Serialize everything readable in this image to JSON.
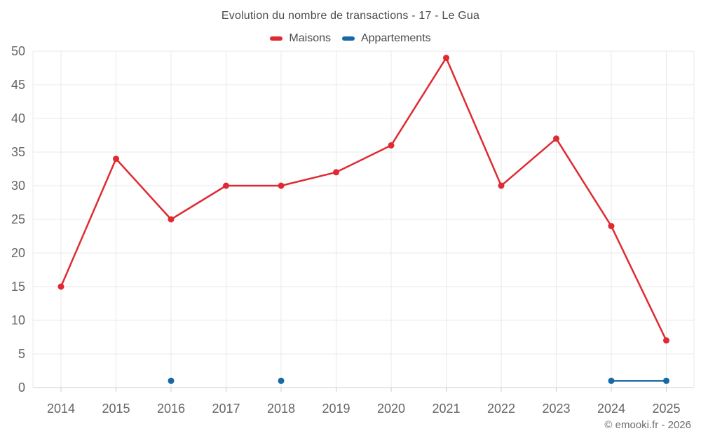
{
  "header": {
    "title": "Evolution du nombre de transactions - 17 - Le Gua"
  },
  "legend": {
    "items": [
      {
        "label": "Maisons",
        "color": "#e02a33"
      },
      {
        "label": "Appartements",
        "color": "#1769a4"
      }
    ]
  },
  "footer": {
    "copyright": "© emooki.fr - 2026"
  },
  "chart_data": {
    "type": "line",
    "title": "Evolution du nombre de transactions - 17 - Le Gua",
    "categories": [
      "2014",
      "2015",
      "2016",
      "2017",
      "2018",
      "2019",
      "2020",
      "2021",
      "2022",
      "2023",
      "2024",
      "2025"
    ],
    "series": [
      {
        "name": "Maisons",
        "color": "#e02a33",
        "values": [
          15,
          34,
          25,
          30,
          30,
          32,
          36,
          49,
          30,
          37,
          24,
          7
        ]
      },
      {
        "name": "Appartements",
        "color": "#1769a4",
        "values": [
          null,
          null,
          1,
          null,
          1,
          null,
          null,
          null,
          null,
          null,
          1,
          1
        ]
      }
    ],
    "xlabel": "",
    "ylabel": "",
    "ylim": [
      0,
      50
    ],
    "yticks": [
      0,
      5,
      10,
      15,
      20,
      25,
      30,
      35,
      40,
      45,
      50
    ],
    "grid": true,
    "legend_position": "top",
    "styles": {
      "grid_color": "#e9e9e9",
      "axis_color": "#cccccc",
      "label_color": "#666666",
      "background": "#ffffff"
    }
  }
}
